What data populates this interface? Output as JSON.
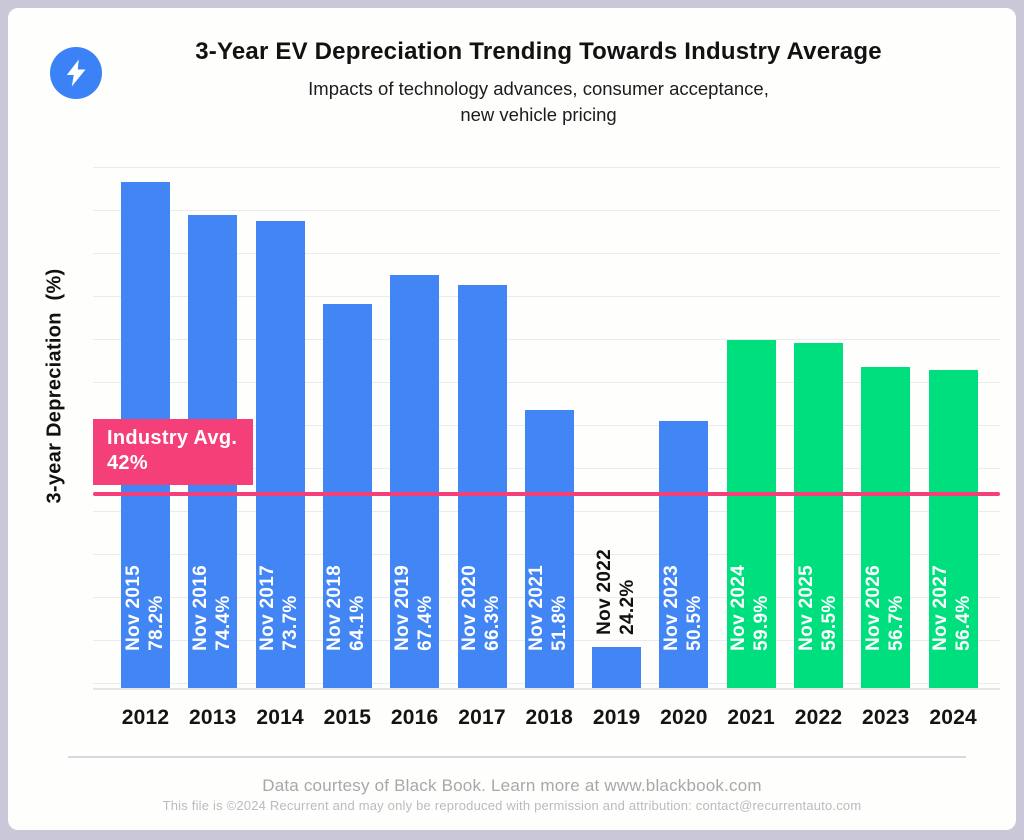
{
  "header": {
    "logo_icon": "lightning-bolt-icon",
    "logo_color": "#3b82f6",
    "title": "3-Year EV Depreciation Trending Towards Industry Average",
    "subtitle_line1": "Impacts of technology advances, consumer acceptance,",
    "subtitle_line2": "new vehicle pricing"
  },
  "chart_data": {
    "type": "bar",
    "title": "3-Year EV Depreciation Trending Towards Industry Average",
    "ylabel": "3-year Depreciation  (%)",
    "xlabel": "",
    "ylim": [
      20,
      80
    ],
    "gridline_step_pct": 5,
    "grid": "horizontal",
    "legend": "none",
    "categories": [
      "2012",
      "2013",
      "2014",
      "2015",
      "2016",
      "2017",
      "2018",
      "2019",
      "2020",
      "2021",
      "2022",
      "2023",
      "2024"
    ],
    "bars": [
      {
        "year": "2012",
        "date_label": "Nov 2015",
        "value": 78.2,
        "value_label": "78.2%",
        "color": "blue",
        "label_position": "inside"
      },
      {
        "year": "2013",
        "date_label": "Nov 2016",
        "value": 74.4,
        "value_label": "74.4%",
        "color": "blue",
        "label_position": "inside"
      },
      {
        "year": "2014",
        "date_label": "Nov 2017",
        "value": 73.7,
        "value_label": "73.7%",
        "color": "blue",
        "label_position": "inside"
      },
      {
        "year": "2015",
        "date_label": "Nov 2018",
        "value": 64.1,
        "value_label": "64.1%",
        "color": "blue",
        "label_position": "inside"
      },
      {
        "year": "2016",
        "date_label": "Nov 2019",
        "value": 67.4,
        "value_label": "67.4%",
        "color": "blue",
        "label_position": "inside"
      },
      {
        "year": "2017",
        "date_label": "Nov 2020",
        "value": 66.3,
        "value_label": "66.3%",
        "color": "blue",
        "label_position": "inside"
      },
      {
        "year": "2018",
        "date_label": "Nov 2021",
        "value": 51.8,
        "value_label": "51.8%",
        "color": "blue",
        "label_position": "inside"
      },
      {
        "year": "2019",
        "date_label": "Nov 2022",
        "value": 24.2,
        "value_label": "24.2%",
        "color": "blue",
        "label_position": "above"
      },
      {
        "year": "2020",
        "date_label": "Nov 2023",
        "value": 50.5,
        "value_label": "50.5%",
        "color": "blue",
        "label_position": "inside"
      },
      {
        "year": "2021",
        "date_label": "Nov 2024",
        "value": 59.9,
        "value_label": "59.9%",
        "color": "green",
        "label_position": "inside"
      },
      {
        "year": "2022",
        "date_label": "Nov 2025",
        "value": 59.5,
        "value_label": "59.5%",
        "color": "green",
        "label_position": "inside"
      },
      {
        "year": "2023",
        "date_label": "Nov 2026",
        "value": 56.7,
        "value_label": "56.7%",
        "color": "green",
        "label_position": "inside"
      },
      {
        "year": "2024",
        "date_label": "Nov 2027",
        "value": 56.4,
        "value_label": "56.4%",
        "color": "green",
        "label_position": "inside"
      }
    ],
    "reference_line": {
      "value": 42,
      "label_line1": "Industry Avg.",
      "label_line2": "42%",
      "color": "#f43f78"
    },
    "colors": {
      "bar_blue": "#4285f4",
      "bar_green": "#00df7e",
      "label_inside": "#ffffff",
      "label_above": "#111111",
      "accent_pink": "#f43f78"
    }
  },
  "footer": {
    "line1": "Data courtesy of Black Book. Learn more at www.blackbook.com",
    "line2": "This file is ©2024 Recurrent and may only be reproduced with permission and attribution: contact@recurrentauto.com"
  }
}
